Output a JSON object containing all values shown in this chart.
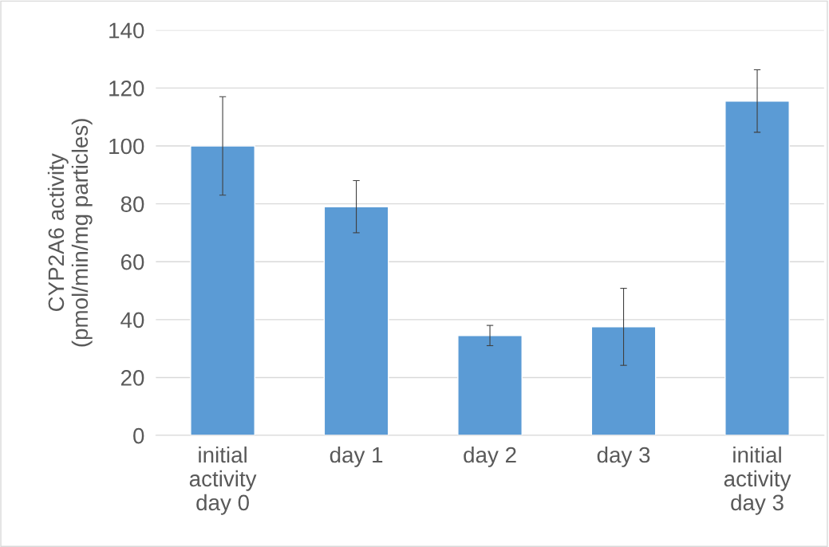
{
  "chart_data": {
    "type": "bar",
    "ylabel": "CYP2A6 activity\n(pmol/min/mg particles)",
    "categories": [
      "initial\nactivity\nday 0",
      "day 1",
      "day 2",
      "day 3",
      "initial\nactivity\nday 3"
    ],
    "values": [
      100,
      79,
      34.5,
      37.5,
      115.5
    ],
    "errors": [
      17,
      9,
      3.5,
      13.3,
      10.8
    ],
    "color": "#5b9bd5",
    "ylim": [
      0,
      140
    ],
    "yticks": [
      0,
      20,
      40,
      60,
      80,
      100,
      120,
      140
    ],
    "grid": "y"
  }
}
